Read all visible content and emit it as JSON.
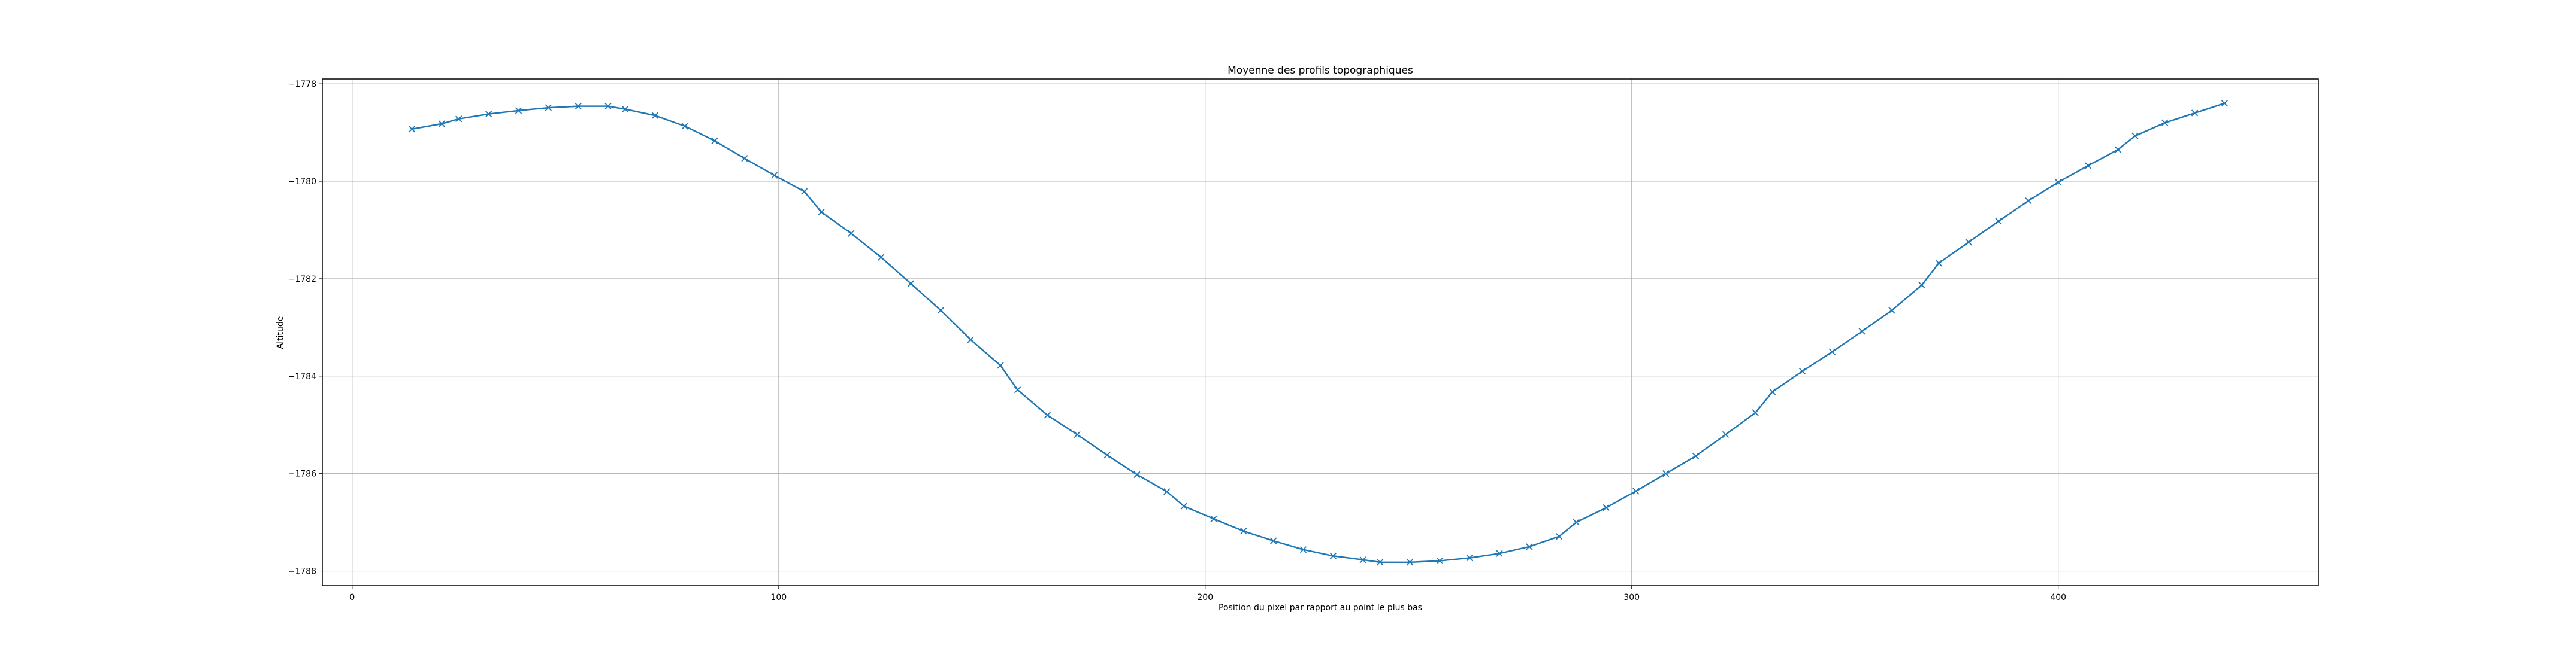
{
  "chart_data": {
    "type": "line",
    "title": "Moyenne des profils topographiques",
    "xlabel": "Position du pixel par rapport au point le plus bas",
    "ylabel": "Altitude",
    "xlim": [
      -7,
      461
    ],
    "ylim": [
      -1788.3,
      -1777.9
    ],
    "xticks": [
      0,
      100,
      200,
      300,
      400
    ],
    "yticks": [
      -1778,
      -1780,
      -1782,
      -1784,
      -1786,
      -1788
    ],
    "tick_labels_x": [
      "0",
      "100",
      "200",
      "300",
      "400"
    ],
    "tick_labels_y": [
      "−1778",
      "−1780",
      "−1782",
      "−1784",
      "−1786",
      "−1788"
    ],
    "grid": true,
    "marker": "x",
    "color": "#1f77b4",
    "series": [
      {
        "x": [
          14,
          21,
          25,
          32,
          39,
          46,
          53,
          60,
          64,
          71,
          78,
          85,
          92,
          99,
          106,
          110,
          117,
          124,
          131,
          138,
          145,
          152,
          156,
          163,
          170,
          177,
          184,
          191,
          195,
          202,
          209,
          216,
          223,
          230,
          237,
          241,
          248,
          255,
          262,
          269,
          276,
          283,
          287,
          294,
          301,
          308,
          315,
          322,
          329,
          333,
          340,
          347,
          354,
          361,
          368,
          372,
          379,
          386,
          393,
          400,
          407,
          414,
          418,
          425,
          432,
          439
        ],
        "y": [
          -1778.93,
          -1778.82,
          -1778.72,
          -1778.62,
          -1778.55,
          -1778.49,
          -1778.46,
          -1778.46,
          -1778.52,
          -1778.65,
          -1778.87,
          -1779.17,
          -1779.53,
          -1779.88,
          -1780.21,
          -1780.63,
          -1781.07,
          -1781.56,
          -1782.1,
          -1782.65,
          -1783.25,
          -1783.78,
          -1784.28,
          -1784.8,
          -1785.2,
          -1785.62,
          -1786.02,
          -1786.37,
          -1786.67,
          -1786.93,
          -1787.18,
          -1787.38,
          -1787.56,
          -1787.69,
          -1787.77,
          -1787.82,
          -1787.82,
          -1787.79,
          -1787.73,
          -1787.64,
          -1787.5,
          -1787.29,
          -1787.0,
          -1786.7,
          -1786.36,
          -1786.0,
          -1785.64,
          -1785.2,
          -1784.75,
          -1784.32,
          -1783.9,
          -1783.5,
          -1783.08,
          -1782.65,
          -1782.13,
          -1781.68,
          -1781.25,
          -1780.82,
          -1780.4,
          -1780.02,
          -1779.68,
          -1779.35,
          -1779.07,
          -1778.8,
          -1778.6,
          -1778.4
        ]
      }
    ]
  }
}
